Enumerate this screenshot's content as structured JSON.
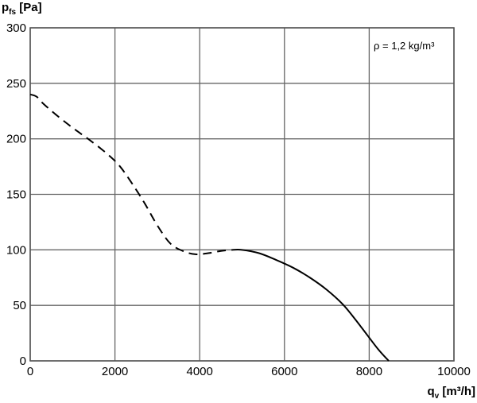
{
  "chart_data": {
    "type": "line",
    "title": "",
    "ylabel": {
      "main": "p",
      "sub": "fs",
      "unit": " [Pa]"
    },
    "xlabel": {
      "main": "q",
      "sub": "v",
      "unit": " [m³/h]"
    },
    "xlim": [
      0,
      10000
    ],
    "ylim": [
      0,
      300
    ],
    "xticks": [
      0,
      2000,
      4000,
      6000,
      8000,
      10000
    ],
    "yticks": [
      0,
      50,
      100,
      150,
      200,
      250,
      300
    ],
    "xtick_labels": [
      "0",
      "2000",
      "4000",
      "6000",
      "8000",
      "10000"
    ],
    "ytick_labels": [
      "0",
      "50",
      "100",
      "150",
      "200",
      "250",
      "300"
    ],
    "grid": true,
    "annotation": "ρ = 1,2 kg/m³",
    "series": [
      {
        "style": "dashed",
        "x": [
          0,
          150,
          300,
          600,
          1000,
          1400,
          1800,
          2100,
          2400,
          2700,
          3000,
          3300,
          3600,
          3900,
          4200,
          4500,
          4750
        ],
        "y": [
          240,
          238,
          232,
          222,
          210,
          199,
          187,
          176,
          160,
          142,
          122,
          106,
          99,
          96,
          97,
          99,
          100
        ]
      },
      {
        "style": "solid",
        "x": [
          4750,
          5000,
          5400,
          5800,
          6200,
          6600,
          7000,
          7400,
          7800,
          8200,
          8460
        ],
        "y": [
          100,
          100,
          97,
          91,
          84,
          75,
          64,
          50,
          31,
          11,
          0
        ]
      }
    ]
  }
}
